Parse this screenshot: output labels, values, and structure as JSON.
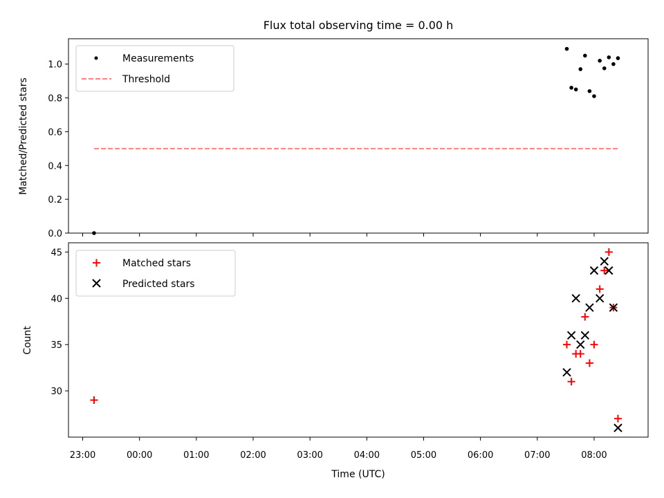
{
  "chart_data": {
    "title": "Flux total observing time = 0.00 h",
    "xlabel": "Time (UTC)",
    "x_ticks": [
      "23:00",
      "00:00",
      "01:00",
      "02:00",
      "03:00",
      "04:00",
      "05:00",
      "06:00",
      "07:00",
      "08:00"
    ],
    "x_tick_hours": [
      23,
      24,
      25,
      26,
      27,
      28,
      29,
      30,
      31,
      32
    ],
    "xlim_hours": [
      22.75,
      32.95
    ],
    "panels": [
      {
        "type": "scatter",
        "ylabel": "Matched/Predicted stars",
        "ylim": [
          0.0,
          1.15
        ],
        "y_ticks": [
          "0.0",
          "0.2",
          "0.4",
          "0.6",
          "0.8",
          "1.0"
        ],
        "y_tick_values": [
          0.0,
          0.2,
          0.4,
          0.6,
          0.8,
          1.0
        ],
        "legend_position": "upper-left",
        "series": [
          {
            "name": "Measurements",
            "kind": "points",
            "color": "#000000",
            "x_hours": [
              23.2,
              31.52,
              31.6,
              31.68,
              31.76,
              31.84,
              31.92,
              32.0,
              32.1,
              32.18,
              32.26,
              32.34,
              32.42
            ],
            "y": [
              0.0,
              1.09,
              0.86,
              0.85,
              0.97,
              1.05,
              0.84,
              0.81,
              1.02,
              0.975,
              1.04,
              1.0,
              1.035
            ]
          },
          {
            "name": "Threshold",
            "kind": "dashed-line",
            "color": "#ff7f7f",
            "x_hours": [
              23.2,
              32.42
            ],
            "y": [
              0.5,
              0.5
            ]
          }
        ]
      },
      {
        "type": "scatter",
        "ylabel": "Count",
        "ylim": [
          25.0,
          46.0
        ],
        "y_ticks": [
          "30",
          "35",
          "40",
          "45"
        ],
        "y_tick_values": [
          30,
          35,
          40,
          45
        ],
        "legend_position": "upper-left",
        "series": [
          {
            "name": "Matched stars",
            "marker": "plus",
            "color": "#ff0000",
            "x_hours": [
              23.2,
              31.52,
              31.6,
              31.68,
              31.76,
              31.84,
              31.92,
              32.0,
              32.1,
              32.18,
              32.26,
              32.34,
              32.42
            ],
            "y": [
              29,
              35,
              31,
              34,
              34,
              38,
              33,
              35,
              41,
              43,
              45,
              39,
              27
            ]
          },
          {
            "name": "Predicted stars",
            "marker": "x",
            "color": "#000000",
            "x_hours": [
              31.52,
              31.6,
              31.68,
              31.76,
              31.84,
              31.92,
              32.0,
              32.1,
              32.18,
              32.26,
              32.34,
              32.42
            ],
            "y": [
              32,
              36,
              40,
              35,
              36,
              39,
              43,
              40,
              44,
              43,
              39,
              26
            ]
          }
        ]
      }
    ]
  }
}
